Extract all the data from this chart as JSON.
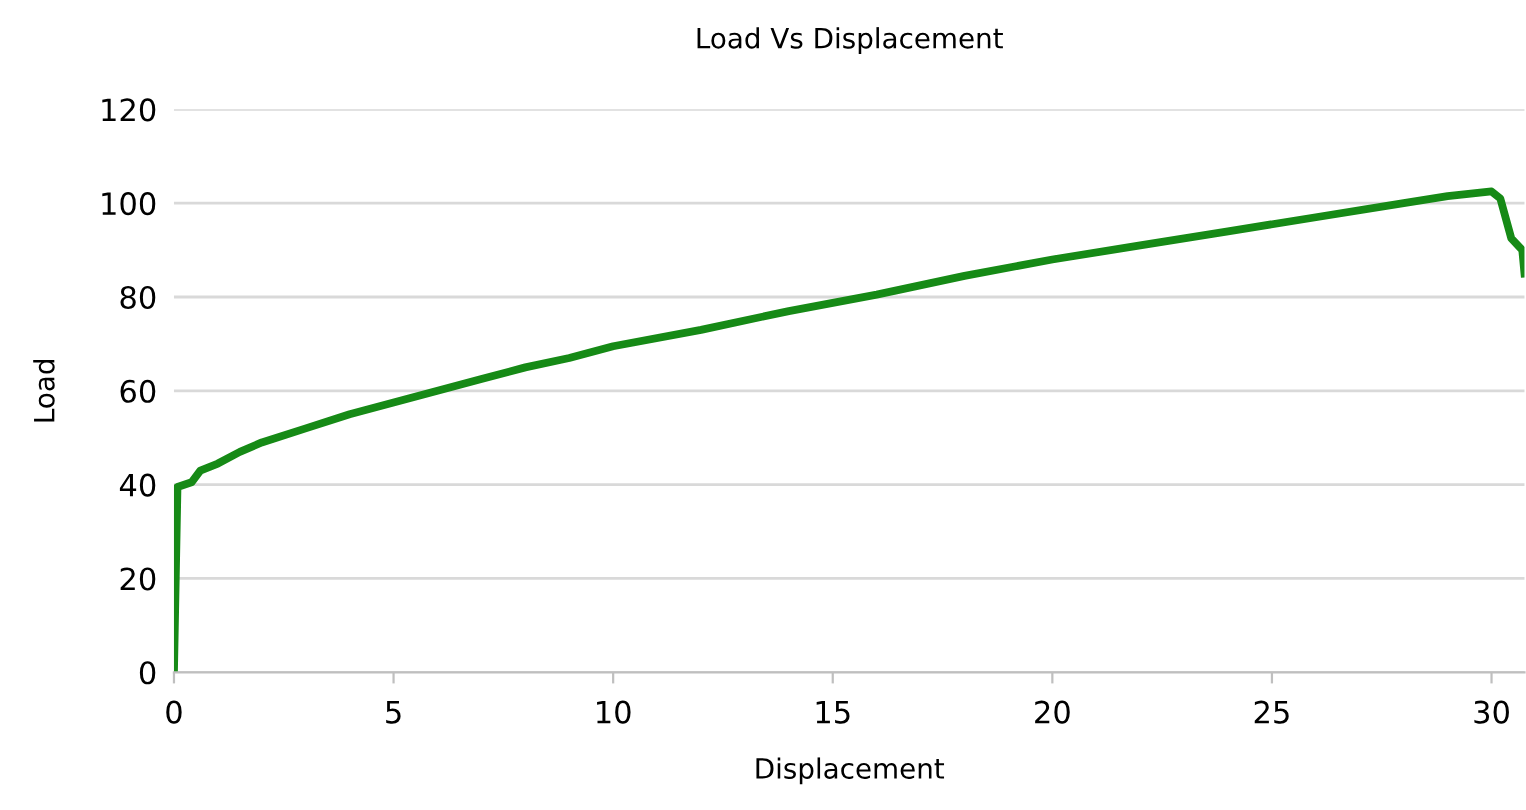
{
  "chart_data": {
    "type": "line",
    "title": "Load Vs Displacement",
    "xlabel": "Displacement",
    "ylabel": "Load",
    "x": [
      0,
      0.08,
      0.4,
      0.6,
      1,
      1.5,
      2,
      3,
      4,
      5,
      6,
      7,
      8,
      9,
      10,
      12,
      14,
      16,
      18,
      20,
      22,
      24,
      26,
      28,
      29,
      30,
      30.2,
      30.45,
      30.7,
      30.75
    ],
    "series": [
      {
        "color": "#168a16",
        "values": [
          0,
          39.5,
          40.5,
          43,
          44.5,
          47,
          49,
          52,
          55,
          57.5,
          60,
          62.5,
          65,
          67,
          69.5,
          73,
          77,
          80.5,
          84.5,
          88,
          91,
          94,
          97,
          100,
          101.5,
          102.5,
          101,
          92.5,
          90,
          85
        ]
      }
    ],
    "xlim": [
      0,
      30.75
    ],
    "ylim": [
      0,
      120
    ],
    "xticks": [
      0,
      5,
      10,
      15,
      20,
      25,
      30
    ],
    "yticks": [
      0,
      20,
      40,
      60,
      80,
      100,
      120
    ],
    "grid": "y"
  }
}
